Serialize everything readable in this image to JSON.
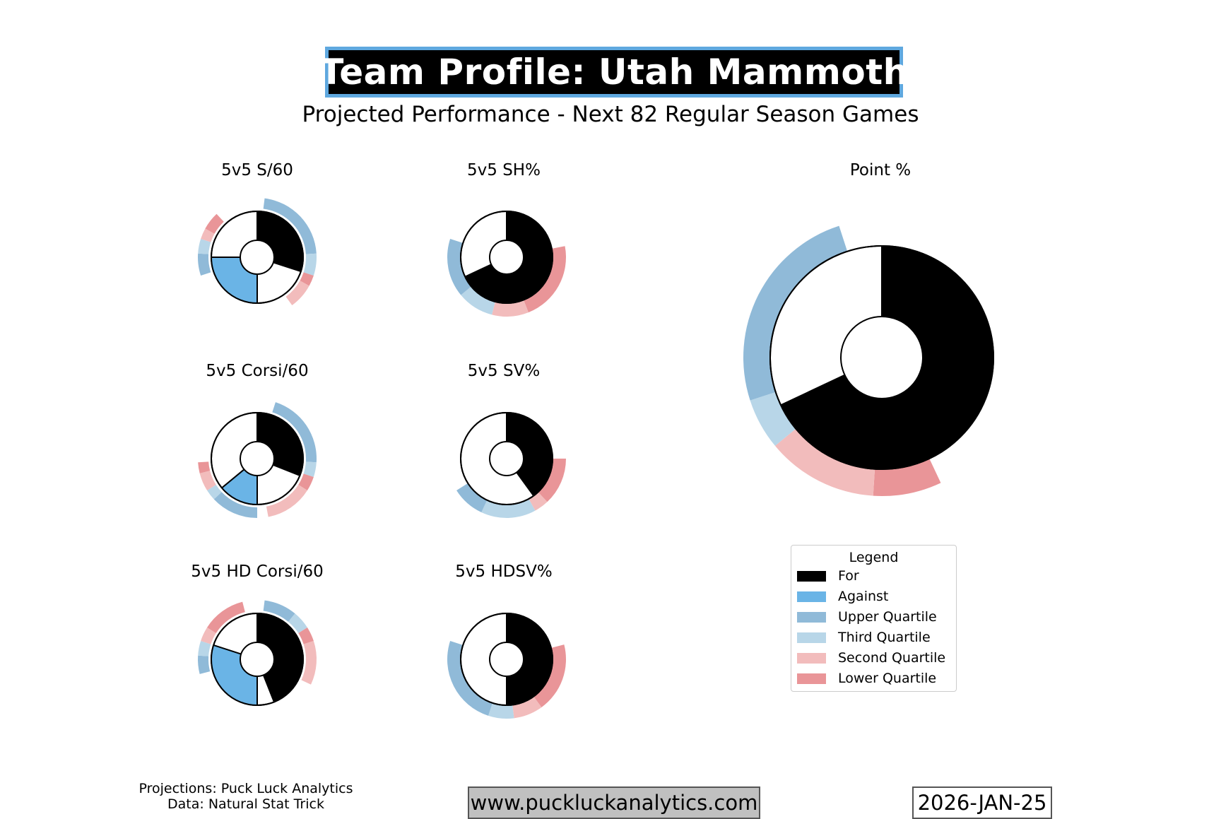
{
  "header": {
    "title": "Team Profile: Utah Mammoth",
    "subtitle": "Projected Performance - Next 82 Regular Season Games"
  },
  "colors": {
    "for": "#000000",
    "against": "#6ab4e6",
    "upper_quartile": "#90bad8",
    "third_quartile": "#b8d6e8",
    "second_quartile": "#f2bcbc",
    "lower_quartile": "#e99598",
    "title_border": "#5fa8df",
    "url_box": "#c0c0c0"
  },
  "legend": {
    "title": "Legend",
    "items": [
      {
        "label": "For",
        "color": "#000000"
      },
      {
        "label": "Against",
        "color": "#6ab4e6"
      },
      {
        "label": "Upper Quartile",
        "color": "#90bad8"
      },
      {
        "label": "Third Quartile",
        "color": "#b8d6e8"
      },
      {
        "label": "Second Quartile",
        "color": "#f2bcbc"
      },
      {
        "label": "Lower Quartile",
        "color": "#e99598"
      }
    ]
  },
  "footer": {
    "credits_line1": "Projections: Puck Luck Analytics",
    "credits_line2": "Data: Natural Stat Trick",
    "url": "www.puckluckanalytics.com",
    "date": "2026-JAN-25"
  },
  "chart_data": [
    {
      "type": "pie",
      "title": "5v5 S/60",
      "for_share": 0.3,
      "against_share": 0.25,
      "for_quartile_bands": [
        {
          "quartile": "upper",
          "from": 0.02,
          "to": 0.24
        },
        {
          "quartile": "third",
          "from": 0.24,
          "to": 0.3
        },
        {
          "quartile": "lower",
          "from": 0.3,
          "to": 0.33
        },
        {
          "quartile": "second",
          "from": 0.33,
          "to": 0.4
        }
      ],
      "against_quartile_bands": [
        {
          "quartile": "upper",
          "from": 0.7,
          "to": 0.76
        },
        {
          "quartile": "third",
          "from": 0.76,
          "to": 0.8
        },
        {
          "quartile": "second",
          "from": 0.8,
          "to": 0.83
        },
        {
          "quartile": "lower",
          "from": 0.83,
          "to": 0.88
        }
      ]
    },
    {
      "type": "pie",
      "title": "5v5 SH%",
      "for_share": 0.68,
      "quartile_bands": [
        {
          "quartile": "lower",
          "from": 0.22,
          "to": 0.44
        },
        {
          "quartile": "second",
          "from": 0.44,
          "to": 0.54
        },
        {
          "quartile": "third",
          "from": 0.54,
          "to": 0.64
        },
        {
          "quartile": "upper",
          "from": 0.64,
          "to": 0.8
        }
      ]
    },
    {
      "type": "pie",
      "title": "Point %",
      "for_share": 0.68,
      "quartile_bands": [
        {
          "quartile": "lower",
          "from": 0.43,
          "to": 0.51
        },
        {
          "quartile": "second",
          "from": 0.51,
          "to": 0.64
        },
        {
          "quartile": "third",
          "from": 0.64,
          "to": 0.7
        },
        {
          "quartile": "upper",
          "from": 0.7,
          "to": 0.95
        }
      ]
    },
    {
      "type": "pie",
      "title": "5v5 Corsi/60",
      "for_share": 0.31,
      "against_share": 0.14,
      "for_quartile_bands": [
        {
          "quartile": "upper",
          "from": 0.05,
          "to": 0.26
        },
        {
          "quartile": "third",
          "from": 0.26,
          "to": 0.3
        },
        {
          "quartile": "lower",
          "from": 0.3,
          "to": 0.34
        },
        {
          "quartile": "second",
          "from": 0.34,
          "to": 0.47
        }
      ],
      "against_quartile_bands": [
        {
          "quartile": "upper",
          "from": 0.5,
          "to": 0.63
        },
        {
          "quartile": "third",
          "from": 0.63,
          "to": 0.66
        },
        {
          "quartile": "second",
          "from": 0.66,
          "to": 0.71
        },
        {
          "quartile": "lower",
          "from": 0.71,
          "to": 0.74
        }
      ]
    },
    {
      "type": "pie",
      "title": "5v5 SV%",
      "for_share": 0.4,
      "quartile_bands": [
        {
          "quartile": "lower",
          "from": 0.25,
          "to": 0.38
        },
        {
          "quartile": "second",
          "from": 0.38,
          "to": 0.42
        },
        {
          "quartile": "third",
          "from": 0.42,
          "to": 0.57
        },
        {
          "quartile": "upper",
          "from": 0.57,
          "to": 0.66
        }
      ]
    },
    {
      "type": "pie",
      "title": "5v5 HD Corsi/60",
      "for_share": 0.44,
      "against_share": 0.3,
      "for_quartile_bands": [
        {
          "quartile": "upper",
          "from": 0.02,
          "to": 0.11
        },
        {
          "quartile": "third",
          "from": 0.11,
          "to": 0.16
        },
        {
          "quartile": "lower",
          "from": 0.16,
          "to": 0.2
        },
        {
          "quartile": "second",
          "from": 0.2,
          "to": 0.32
        }
      ],
      "against_quartile_bands": [
        {
          "quartile": "upper",
          "from": 0.71,
          "to": 0.76
        },
        {
          "quartile": "third",
          "from": 0.76,
          "to": 0.8
        },
        {
          "quartile": "second",
          "from": 0.8,
          "to": 0.84
        },
        {
          "quartile": "lower",
          "from": 0.84,
          "to": 0.96
        }
      ]
    },
    {
      "type": "pie",
      "title": "5v5 HDSV%",
      "for_share": 0.5,
      "quartile_bands": [
        {
          "quartile": "lower",
          "from": 0.21,
          "to": 0.4
        },
        {
          "quartile": "second",
          "from": 0.4,
          "to": 0.48
        },
        {
          "quartile": "third",
          "from": 0.48,
          "to": 0.55
        },
        {
          "quartile": "upper",
          "from": 0.55,
          "to": 0.8
        }
      ]
    }
  ]
}
